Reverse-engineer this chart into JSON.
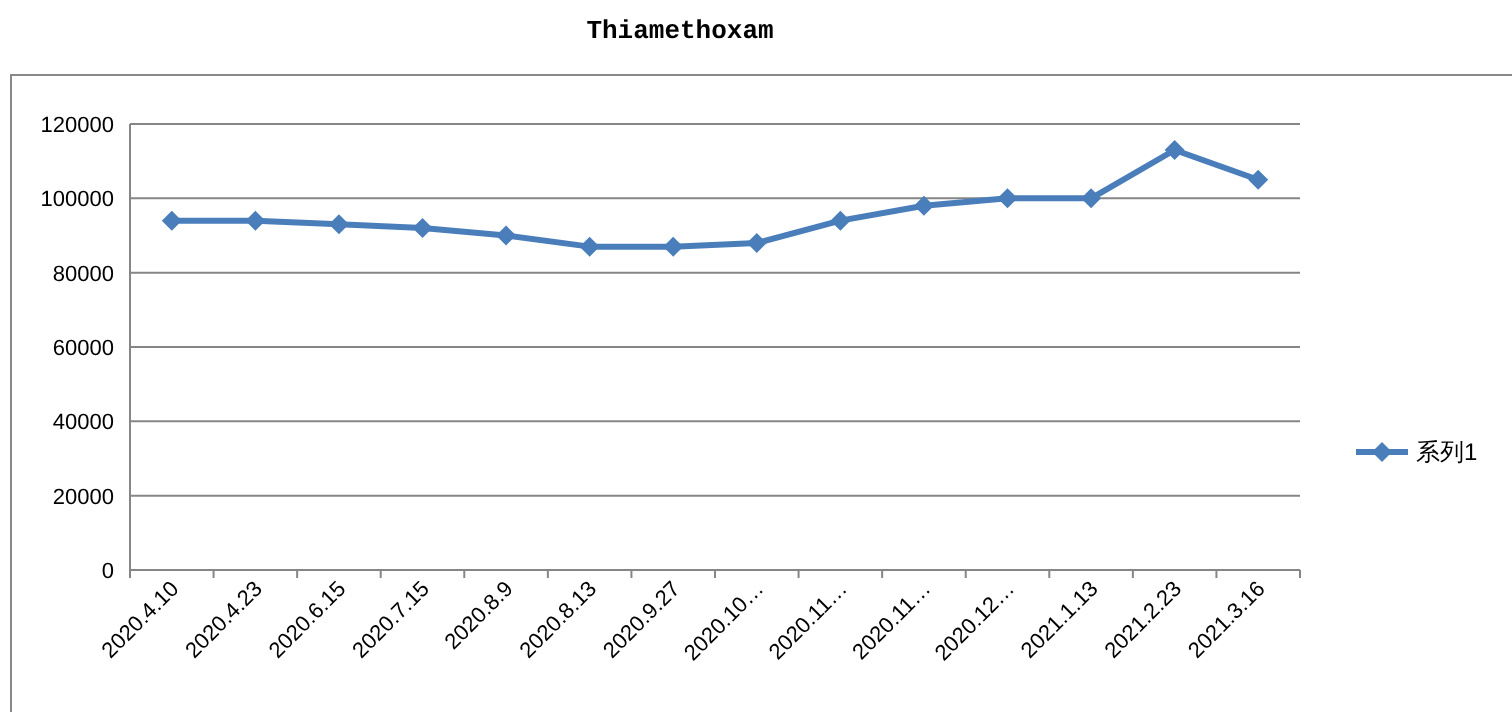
{
  "chart_data": {
    "type": "line",
    "title": "Thiamethoxam",
    "categories": [
      "2020.4.10",
      "2020.4.23",
      "2020.6.15",
      "2020.7.15",
      "2020.8.9",
      "2020.8.13",
      "2020.9.27",
      "2020.10…",
      "2020.11…",
      "2020.11…",
      "2020.12…",
      "2021.1.13",
      "2021.2.23",
      "2021.3.16"
    ],
    "series": [
      {
        "name": "系列1",
        "color": "#4a7ebb",
        "values": [
          94000,
          94000,
          93000,
          92000,
          90000,
          87000,
          87000,
          88000,
          94000,
          98000,
          100000,
          100000,
          113000,
          105000
        ]
      }
    ],
    "ylim": [
      0,
      120000
    ],
    "yticks": [
      0,
      20000,
      40000,
      60000,
      80000,
      100000,
      120000
    ],
    "grid": "y",
    "legend": "right",
    "marker": "diamond",
    "line_style": "solid"
  }
}
